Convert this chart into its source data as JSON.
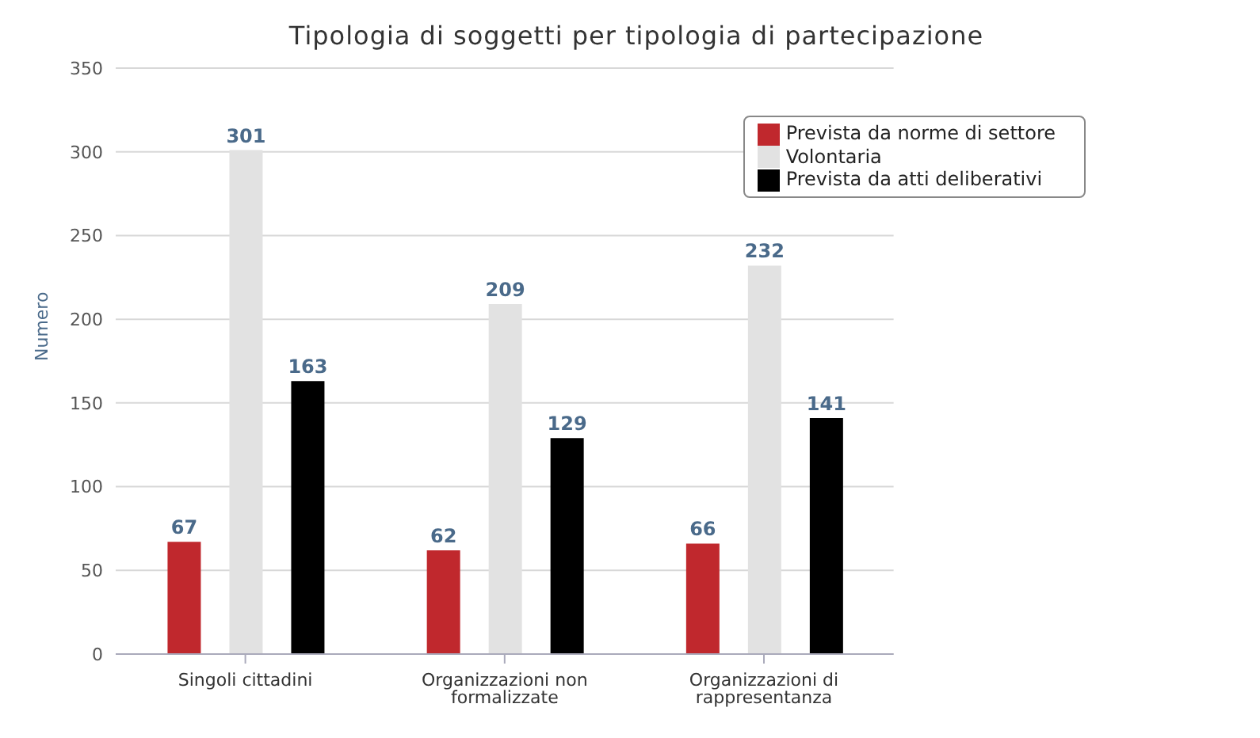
{
  "chart_data": {
    "type": "bar",
    "title": "Tipologia di soggetti per tipologia di partecipazione",
    "ylabel": "Numero",
    "categories": [
      "Singoli cittadini",
      "Organizzazioni non formalizzate",
      "Organizzazioni di rappresentanza"
    ],
    "series": [
      {
        "name": "Prevista da norme di settore",
        "color": "#c0282d",
        "values": [
          67,
          62,
          66
        ]
      },
      {
        "name": "Volontaria",
        "color": "#e2e2e2",
        "values": [
          301,
          209,
          232
        ]
      },
      {
        "name": "Prevista da atti deliberativi",
        "color": "#000000",
        "values": [
          163,
          129,
          141
        ]
      }
    ],
    "ylim": [
      0,
      350
    ],
    "yticks": [
      0,
      50,
      100,
      150,
      200,
      250,
      300,
      350
    ],
    "grid": "y",
    "legend": "top right",
    "data_labels": true
  }
}
